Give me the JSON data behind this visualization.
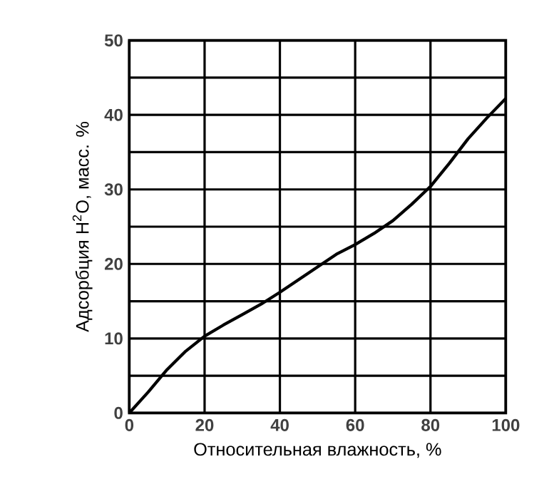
{
  "chart_data": {
    "type": "line",
    "xlabel": "Относительная влажность, %",
    "ylabel": "Адсорбция H$^{2}$O, масс. %",
    "x": [
      0,
      5,
      10,
      15,
      20,
      25,
      30,
      35,
      40,
      45,
      50,
      55,
      60,
      65,
      70,
      75,
      80,
      85,
      90,
      95,
      100
    ],
    "series": [
      {
        "color": "#000000",
        "values": [
          0,
          2.8,
          5.8,
          8.3,
          10.3,
          11.8,
          13.2,
          14.6,
          16.2,
          17.9,
          19.6,
          21.3,
          22.6,
          24.1,
          25.8,
          28,
          30.4,
          33.5,
          36.8,
          39.6,
          42.2
        ]
      }
    ],
    "xlim": [
      0,
      100
    ],
    "ylim": [
      0,
      50
    ],
    "xticks": [
      0,
      20,
      40,
      60,
      80,
      100
    ],
    "yticks": [
      0,
      {
        "value": 5,
        "label": null
      },
      10,
      {
        "value": 15,
        "label": null
      },
      20,
      {
        "value": 25,
        "label": null
      },
      30,
      {
        "value": 35,
        "label": null
      },
      40,
      {
        "value": 45,
        "label": null
      },
      50
    ],
    "grid": true,
    "marker": "none",
    "line_style": "solid"
  }
}
